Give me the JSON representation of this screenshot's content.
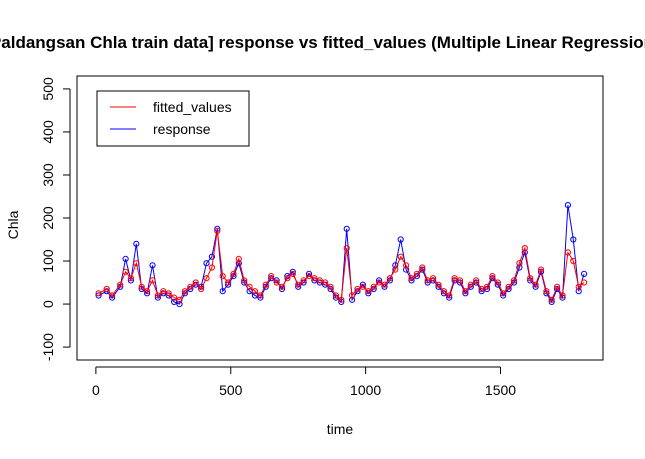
{
  "chart_data": {
    "type": "line",
    "title": "[Paldangsan Chla train data] response vs fitted_values (Multiple Linear Regression)",
    "xlabel": "time",
    "ylabel": "Chla",
    "xlim": [
      -70,
      1880
    ],
    "ylim": [
      -130,
      530
    ],
    "x_ticks": [
      0,
      500,
      1000,
      1500
    ],
    "x_tick_labels": [
      "0",
      "500",
      "1000",
      "1500"
    ],
    "y_ticks": [
      -100,
      0,
      100,
      200,
      300,
      400,
      500
    ],
    "y_tick_labels": [
      "-100",
      "0",
      "100",
      "200",
      "300",
      "400",
      "500"
    ],
    "legend": {
      "position": "top-left",
      "entries": [
        "fitted_values",
        "response"
      ]
    },
    "grid": false,
    "markers": "open-circle",
    "series": [
      {
        "name": "fitted_values",
        "color": "#ff0000",
        "x": [
          10,
          40,
          60,
          90,
          110,
          130,
          150,
          170,
          190,
          210,
          230,
          250,
          270,
          290,
          310,
          330,
          350,
          370,
          390,
          410,
          430,
          450,
          470,
          490,
          510,
          530,
          550,
          570,
          590,
          610,
          630,
          650,
          670,
          690,
          710,
          730,
          750,
          770,
          790,
          810,
          830,
          850,
          870,
          890,
          910,
          930,
          950,
          970,
          990,
          1010,
          1030,
          1050,
          1070,
          1090,
          1110,
          1130,
          1150,
          1170,
          1190,
          1210,
          1230,
          1250,
          1270,
          1290,
          1310,
          1330,
          1350,
          1370,
          1390,
          1410,
          1430,
          1450,
          1470,
          1490,
          1510,
          1530,
          1550,
          1570,
          1590,
          1610,
          1630,
          1650,
          1670,
          1690,
          1710,
          1730,
          1750,
          1770,
          1790,
          1810
        ],
        "values": [
          25,
          35,
          20,
          45,
          75,
          60,
          95,
          40,
          30,
          55,
          20,
          30,
          25,
          15,
          10,
          30,
          40,
          50,
          35,
          60,
          85,
          170,
          65,
          50,
          70,
          105,
          55,
          40,
          30,
          20,
          45,
          65,
          50,
          40,
          60,
          70,
          45,
          55,
          65,
          60,
          55,
          50,
          40,
          20,
          10,
          130,
          20,
          35,
          40,
          30,
          40,
          50,
          45,
          60,
          80,
          110,
          90,
          60,
          70,
          85,
          55,
          60,
          45,
          30,
          20,
          60,
          55,
          30,
          45,
          55,
          35,
          40,
          65,
          50,
          25,
          40,
          55,
          95,
          130,
          60,
          45,
          80,
          30,
          10,
          40,
          20,
          120,
          100,
          40,
          50
        ]
      },
      {
        "name": "response",
        "color": "#0000ff",
        "x": [
          10,
          40,
          60,
          90,
          110,
          130,
          150,
          170,
          190,
          210,
          230,
          250,
          270,
          290,
          310,
          330,
          350,
          370,
          390,
          410,
          430,
          450,
          470,
          490,
          510,
          530,
          550,
          570,
          590,
          610,
          630,
          650,
          670,
          690,
          710,
          730,
          750,
          770,
          790,
          810,
          830,
          850,
          870,
          890,
          910,
          930,
          950,
          970,
          990,
          1010,
          1030,
          1050,
          1070,
          1090,
          1110,
          1130,
          1150,
          1170,
          1190,
          1210,
          1230,
          1250,
          1270,
          1290,
          1310,
          1330,
          1350,
          1370,
          1390,
          1410,
          1430,
          1450,
          1470,
          1490,
          1510,
          1530,
          1550,
          1570,
          1590,
          1610,
          1630,
          1650,
          1670,
          1690,
          1710,
          1730,
          1750,
          1770,
          1790,
          1810
        ],
        "values": [
          20,
          30,
          15,
          40,
          105,
          55,
          140,
          35,
          25,
          90,
          15,
          25,
          20,
          5,
          0,
          25,
          35,
          45,
          40,
          95,
          110,
          175,
          30,
          45,
          65,
          95,
          50,
          30,
          20,
          15,
          40,
          60,
          55,
          35,
          65,
          75,
          40,
          50,
          70,
          55,
          50,
          45,
          35,
          15,
          5,
          175,
          10,
          30,
          45,
          25,
          35,
          55,
          40,
          55,
          90,
          150,
          80,
          55,
          65,
          80,
          50,
          55,
          40,
          25,
          15,
          55,
          50,
          25,
          40,
          50,
          30,
          35,
          60,
          45,
          20,
          35,
          50,
          85,
          120,
          55,
          40,
          75,
          25,
          5,
          35,
          15,
          230,
          150,
          30,
          70
        ]
      }
    ]
  }
}
